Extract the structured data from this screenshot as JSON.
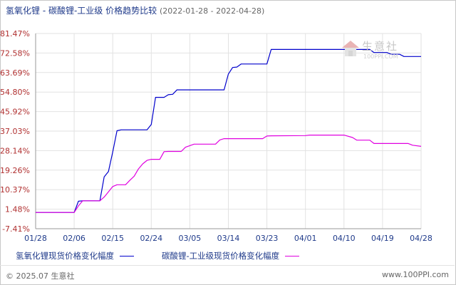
{
  "header": {
    "title": "氢氧化锂 - 碳酸锂-工业级 价格趋势比较",
    "date_range": "(2022-01-28 - 2022-04-28)"
  },
  "chart_data": {
    "type": "line",
    "x": [
      "01/28",
      "02/06",
      "02/15",
      "02/24",
      "03/05",
      "03/14",
      "03/23",
      "04/01",
      "04/10",
      "04/19",
      "04/28"
    ],
    "x_tick_labels": [
      "01/28",
      "02/06",
      "02/15",
      "02/24",
      "03/05",
      "03/14",
      "03/23",
      "04/01",
      "04/10",
      "04/19",
      "04/28"
    ],
    "y_tick_labels": [
      "81.47%",
      "72.58%",
      "63.69%",
      "54.80%",
      "45.92%",
      "37.03%",
      "28.14%",
      "19.26%",
      "10.37%",
      "1.48%",
      "-7.41%"
    ],
    "y_ticks": [
      81.47,
      72.58,
      63.69,
      54.8,
      45.92,
      37.03,
      28.14,
      19.26,
      10.37,
      1.48,
      -7.41
    ],
    "ylim": [
      -7.41,
      81.47
    ],
    "grid": true,
    "series": [
      {
        "name": "氢氧化锂现货价格变化幅度",
        "color": "#0000cc",
        "points": [
          [
            "01/28",
            0
          ],
          [
            "02/06",
            0
          ],
          [
            "02/07",
            5.1
          ],
          [
            "02/08",
            5.3
          ],
          [
            "02/09",
            5.3
          ],
          [
            "02/12",
            5.3
          ],
          [
            "02/13",
            16.2
          ],
          [
            "02/14",
            18.6
          ],
          [
            "02/15",
            27.5
          ],
          [
            "02/16",
            37.2
          ],
          [
            "02/17",
            37.6
          ],
          [
            "02/23",
            37.6
          ],
          [
            "02/24",
            40.0
          ],
          [
            "02/25",
            52.4
          ],
          [
            "02/27",
            52.4
          ],
          [
            "02/28",
            53.6
          ],
          [
            "03/01",
            53.8
          ],
          [
            "03/02",
            55.8
          ],
          [
            "03/13",
            55.8
          ],
          [
            "03/14",
            63.0
          ],
          [
            "03/15",
            66.0
          ],
          [
            "03/16",
            66.2
          ],
          [
            "03/17",
            67.6
          ],
          [
            "03/23",
            67.6
          ],
          [
            "03/24",
            74.2
          ],
          [
            "04/16",
            74.2
          ],
          [
            "04/17",
            72.8
          ],
          [
            "04/20",
            72.8
          ],
          [
            "04/21",
            72.0
          ],
          [
            "04/23",
            72.0
          ],
          [
            "04/24",
            71.0
          ],
          [
            "04/28",
            71.0
          ]
        ]
      },
      {
        "name": "碳酸锂-工业级现货价格变化幅度",
        "color": "#e000e0",
        "points": [
          [
            "01/28",
            0
          ],
          [
            "02/06",
            0
          ],
          [
            "02/07",
            3.0
          ],
          [
            "02/08",
            5.3
          ],
          [
            "02/12",
            5.3
          ],
          [
            "02/13",
            7.0
          ],
          [
            "02/14",
            9.4
          ],
          [
            "02/15",
            11.8
          ],
          [
            "02/16",
            12.6
          ],
          [
            "02/18",
            12.6
          ],
          [
            "02/19",
            14.6
          ],
          [
            "02/20",
            16.5
          ],
          [
            "02/21",
            19.8
          ],
          [
            "02/22",
            22.1
          ],
          [
            "02/23",
            23.7
          ],
          [
            "02/24",
            24.2
          ],
          [
            "02/26",
            24.2
          ],
          [
            "02/27",
            27.7
          ],
          [
            "02/28",
            27.8
          ],
          [
            "03/03",
            27.8
          ],
          [
            "03/04",
            29.7
          ],
          [
            "03/06",
            31.1
          ],
          [
            "03/11",
            31.1
          ],
          [
            "03/12",
            33.0
          ],
          [
            "03/13",
            33.6
          ],
          [
            "03/22",
            33.6
          ],
          [
            "03/23",
            34.8
          ],
          [
            "03/24",
            34.9
          ],
          [
            "04/01",
            35.0
          ],
          [
            "04/02",
            35.2
          ],
          [
            "04/09",
            35.2
          ],
          [
            "04/10",
            35.2
          ],
          [
            "04/12",
            34.1
          ],
          [
            "04/13",
            32.9
          ],
          [
            "04/16",
            32.9
          ],
          [
            "04/17",
            31.4
          ],
          [
            "04/25",
            31.4
          ],
          [
            "04/26",
            30.6
          ],
          [
            "04/28",
            30.1
          ]
        ]
      }
    ]
  },
  "legend": [
    {
      "label": "氢氧化锂现货价格变化幅度",
      "color": "#0000cc"
    },
    {
      "label": "碳酸锂-工业级现货价格变化幅度",
      "color": "#e000e0"
    }
  ],
  "footer": {
    "copyright": "© 2025.07 生意社",
    "website": "www.100PPI.com"
  },
  "watermark": {
    "text": "生意社",
    "url": "100PPI.COM",
    "icon": "house-logo-icon"
  }
}
